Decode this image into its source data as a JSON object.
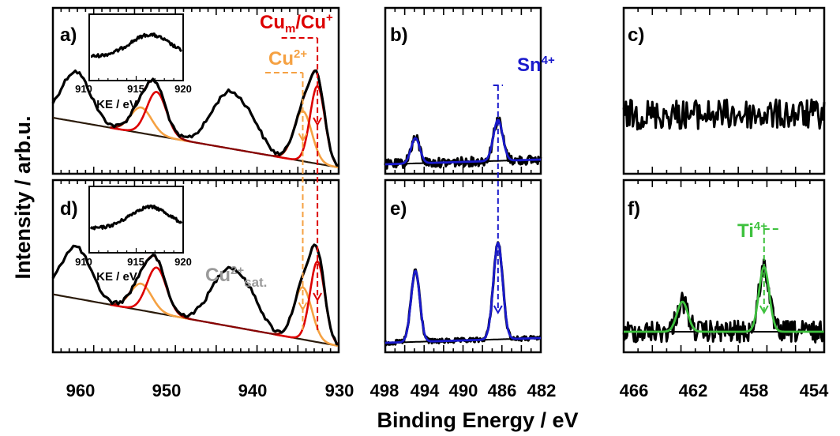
{
  "figure": {
    "ylabel": "Intensity / arb.u.",
    "xlabel": "Binding Energy / eV"
  },
  "colors": {
    "data": "#000000",
    "cu_metal": "#dd0000",
    "cu2": "#f5a142",
    "cu_sat_label": "#9a9a9a",
    "sn": "#1a1acc",
    "ti": "#3ec13e",
    "background": "#2a1a0a"
  },
  "chart_data": [
    {
      "type": "line",
      "panel": "a)",
      "xlim": [
        965,
        930
      ],
      "x_ticks": [
        960,
        950,
        940,
        930
      ],
      "x_tick_labels": [
        "960",
        "950",
        "940",
        "930"
      ],
      "x": [
        965,
        962,
        958,
        955,
        952,
        948,
        945,
        943,
        941,
        938,
        935,
        933.5,
        932.5,
        931,
        930
      ],
      "y": [
        0.55,
        0.72,
        0.62,
        0.74,
        0.78,
        0.3,
        0.28,
        0.48,
        0.4,
        0.25,
        0.68,
        0.9,
        0.78,
        0.15,
        0.05
      ],
      "components": [
        {
          "name": "Cu_m/Cu+",
          "color": "red",
          "peaks": [
            932.6,
            952.3
          ]
        },
        {
          "name": "Cu2+",
          "color": "orange",
          "peaks": [
            934.4,
            954.2
          ]
        }
      ],
      "labels": {
        "cu_metal_main": "Cu",
        "cu_metal_sub": "m",
        "cu_metal_rest": "/Cu",
        "cu_metal_sup": "+",
        "cu2_main": "Cu",
        "cu2_sup": "2+"
      },
      "inset": {
        "xlim": [
          910,
          920
        ],
        "x_ticks": [
          "910",
          "915",
          "920"
        ],
        "xlabel": "KE / eV"
      }
    },
    {
      "type": "line",
      "panel": "b)",
      "xlim": [
        498,
        482
      ],
      "x_ticks": [
        498,
        494,
        490,
        486,
        482
      ],
      "x_tick_labels": [
        "498",
        "494",
        "490",
        "486",
        "482"
      ],
      "components": [
        {
          "name": "Sn4+",
          "color": "blue",
          "peaks": [
            494.9,
            486.4
          ]
        }
      ],
      "labels": {
        "sn_main": "Sn",
        "sn_sup": "4+"
      }
    },
    {
      "type": "line",
      "panel": "c)",
      "xlim": [
        468,
        454
      ],
      "x_ticks": [
        466,
        462,
        458,
        454
      ],
      "x_tick_labels": [
        "466",
        "462",
        "458",
        "454"
      ],
      "note": "noise only"
    },
    {
      "type": "line",
      "panel": "d)",
      "xlim": [
        965,
        930
      ],
      "components": [
        {
          "name": "Cu_m/Cu+",
          "color": "red",
          "peaks": [
            932.6,
            952.3
          ]
        },
        {
          "name": "Cu2+",
          "color": "orange",
          "peaks": [
            934.4,
            954.2
          ]
        }
      ],
      "labels": {
        "sat_main": "Cu",
        "sat_sup": "2+",
        "sat_sub": "sat."
      },
      "inset": {
        "xlim": [
          910,
          920
        ],
        "x_ticks": [
          "910",
          "915",
          "920"
        ],
        "xlabel": "KE / eV"
      }
    },
    {
      "type": "line",
      "panel": "e)",
      "xlim": [
        498,
        482
      ],
      "components": [
        {
          "name": "Sn4+",
          "color": "blue",
          "peaks": [
            494.9,
            486.4
          ]
        }
      ]
    },
    {
      "type": "line",
      "panel": "f)",
      "xlim": [
        468,
        454
      ],
      "components": [
        {
          "name": "Ti4+",
          "color": "green",
          "peaks": [
            463.9,
            458.2
          ]
        }
      ],
      "labels": {
        "ti_main": "Ti",
        "ti_sup": "4+"
      }
    }
  ]
}
